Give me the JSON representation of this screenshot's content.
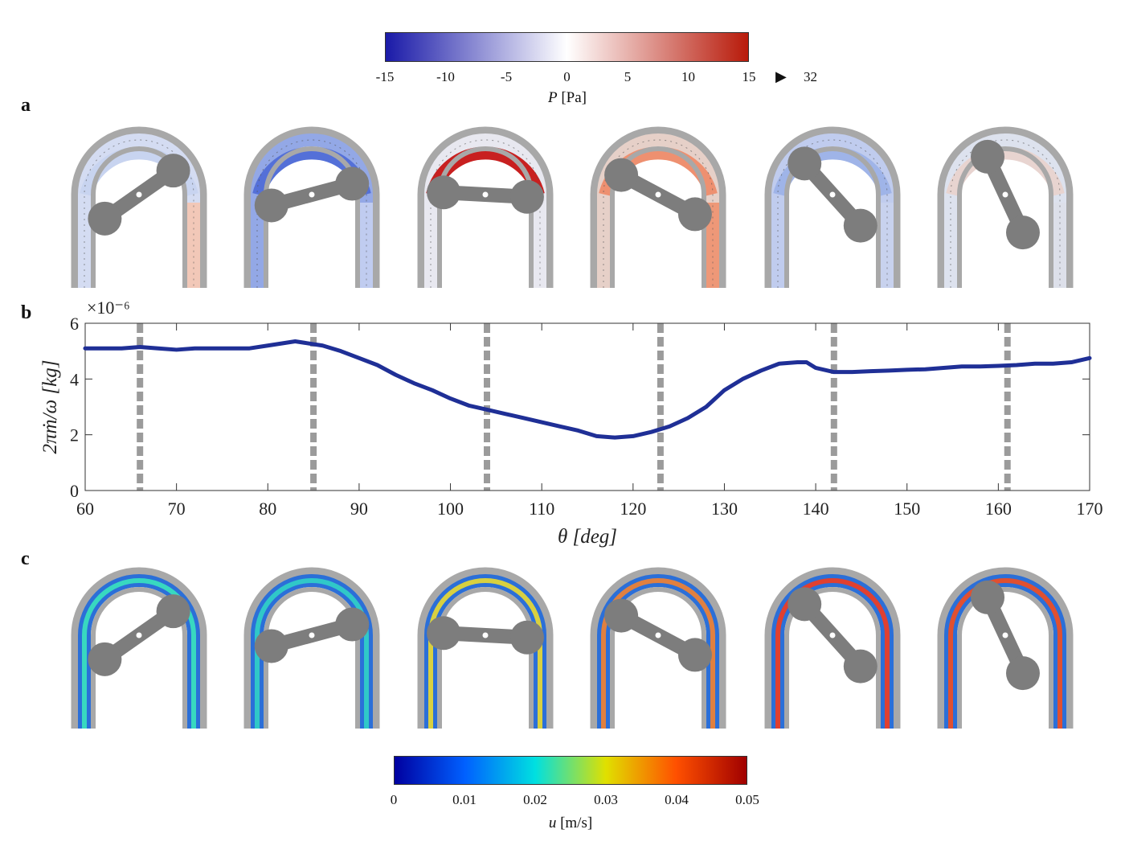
{
  "panels": {
    "a": "a",
    "b": "b",
    "c": "c"
  },
  "pressure_colorbar": {
    "ticks": [
      "-15",
      "-10",
      "-5",
      "0",
      "5",
      "10",
      "15"
    ],
    "overflow_marker": "▶",
    "overflow_value": "32",
    "label_symbol": "P",
    "label_unit": "[Pa]",
    "colors": [
      "#1a1aa8",
      "#ffffff",
      "#b81a0a"
    ]
  },
  "velocity_colorbar": {
    "ticks": [
      "0",
      "0.01",
      "0.02",
      "0.03",
      "0.04",
      "0.05"
    ],
    "label_symbol": "u",
    "label_unit": "[m/s]",
    "colors": [
      "#0000a0",
      "#0060ff",
      "#00e0e0",
      "#e0e000",
      "#ff5000",
      "#a00000"
    ]
  },
  "chart_data": {
    "type": "line",
    "xlabel": "θ [deg]",
    "ylabel": "2πṁ/ω [kg]",
    "y_exponent": "×10⁻⁶",
    "xlim": [
      60,
      170
    ],
    "ylim": [
      0,
      6
    ],
    "xticks": [
      60,
      70,
      80,
      90,
      100,
      110,
      120,
      130,
      140,
      150,
      160,
      170
    ],
    "yticks": [
      0,
      2,
      4,
      6
    ],
    "grid": false,
    "series_color": "#1f2f96",
    "marker_lines": [
      66,
      85,
      104,
      123,
      142,
      161
    ],
    "x": [
      60,
      62,
      64,
      66,
      68,
      70,
      72,
      74,
      76,
      78,
      80,
      82,
      83,
      84,
      86,
      88,
      90,
      92,
      94,
      96,
      98,
      100,
      102,
      104,
      106,
      108,
      110,
      112,
      114,
      116,
      118,
      120,
      122,
      124,
      126,
      128,
      130,
      132,
      134,
      136,
      138,
      139,
      140,
      142,
      144,
      146,
      148,
      150,
      152,
      154,
      156,
      158,
      160,
      162,
      164,
      166,
      168,
      170
    ],
    "y": [
      5.1,
      5.1,
      5.1,
      5.15,
      5.1,
      5.05,
      5.1,
      5.1,
      5.1,
      5.1,
      5.2,
      5.3,
      5.35,
      5.3,
      5.2,
      5.0,
      4.75,
      4.5,
      4.15,
      3.85,
      3.6,
      3.3,
      3.05,
      2.9,
      2.75,
      2.6,
      2.45,
      2.3,
      2.15,
      1.95,
      1.9,
      1.95,
      2.1,
      2.3,
      2.6,
      3.0,
      3.6,
      4.0,
      4.3,
      4.55,
      4.6,
      4.6,
      4.4,
      4.25,
      4.25,
      4.28,
      4.3,
      4.33,
      4.35,
      4.4,
      4.45,
      4.45,
      4.47,
      4.5,
      4.55,
      4.55,
      4.6,
      4.75
    ]
  },
  "configurations": [
    {
      "angle": 35,
      "pressure_fill": "#d4dcf2",
      "pressure_top": "#c8d4f0",
      "pressure_right": "#f2c8b8",
      "velocity_band": "#38d8c0"
    },
    {
      "angle": 15,
      "pressure_fill": "#93a8e6",
      "pressure_top": "#5470d8",
      "pressure_right": "#c0ccf0",
      "velocity_band": "#30c8c8"
    },
    {
      "angle": -3,
      "pressure_fill": "#e8e8f0",
      "pressure_top": "#c82020",
      "pressure_right": "#e8e8f0",
      "velocity_band": "#d8d040"
    },
    {
      "angle": -28,
      "pressure_fill": "#e6d0c8",
      "pressure_top": "#ee9070",
      "pressure_right": "#ee9878",
      "velocity_band": "#e08040"
    },
    {
      "angle": -48,
      "pressure_fill": "#c0ccee",
      "pressure_top": "#9fb4e8",
      "pressure_right": "#c8d2ee",
      "velocity_band": "#e04030"
    },
    {
      "angle": -65,
      "pressure_fill": "#dde2ee",
      "pressure_top": "#e8d4d0",
      "pressure_right": "#dde0ea",
      "velocity_band": "#e05030"
    }
  ]
}
